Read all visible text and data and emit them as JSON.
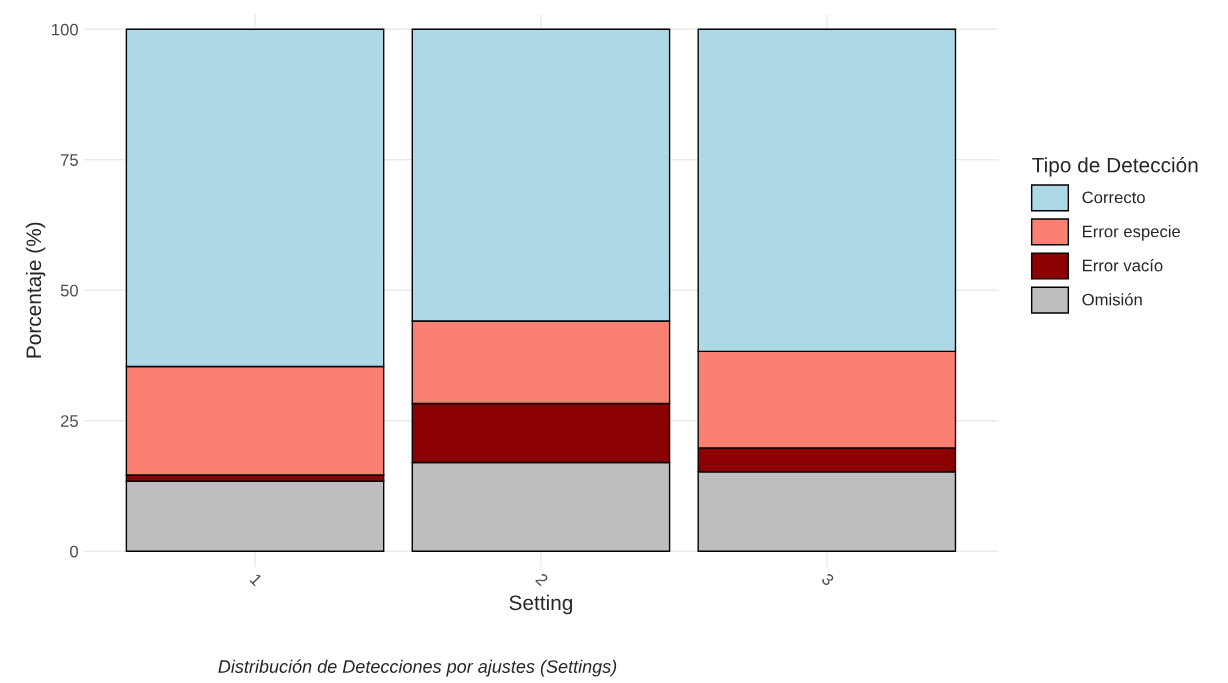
{
  "chart_data": {
    "type": "bar",
    "stacked": true,
    "xlabel": "Setting",
    "ylabel": "Porcentaje (%)",
    "legend_title": "Tipo de Detección",
    "categories": [
      "1",
      "2",
      "3"
    ],
    "series": [
      {
        "name": "Omisión",
        "color": "#bebebe",
        "values": [
          13.4,
          17.0,
          15.2
        ]
      },
      {
        "name": "Error vacío",
        "color": "#8b0000",
        "values": [
          1.2,
          11.3,
          4.6
        ]
      },
      {
        "name": "Error especie",
        "color": "#fa8072",
        "values": [
          20.8,
          15.8,
          18.5
        ]
      },
      {
        "name": "Correcto",
        "color": "#add8e6",
        "values": [
          64.6,
          55.9,
          61.7
        ]
      }
    ],
    "ylim": [
      -3,
      103
    ],
    "yticks": [
      0,
      25,
      50,
      75,
      100
    ],
    "grid": true,
    "legend": "right",
    "annotations": [
      "Distribución de Detecciones por ajustes (Settings)"
    ]
  }
}
